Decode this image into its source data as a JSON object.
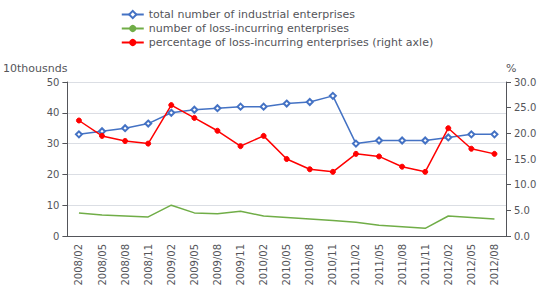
{
  "chart_data": {
    "type": "line",
    "categories": [
      "2008/02",
      "2008/05",
      "2008/08",
      "2008/11",
      "2009/02",
      "2009/05",
      "2009/08",
      "2009/11",
      "2010/02",
      "2010/05",
      "2010/08",
      "2010/11",
      "2011/02",
      "2011/05",
      "2011/08",
      "2011/11",
      "2012/02",
      "2012/05",
      "2012/08"
    ],
    "y_label": "10thousnds",
    "y2_label": "%",
    "ylim": [
      0,
      50
    ],
    "yticks": [
      0,
      10,
      20,
      30,
      40,
      50
    ],
    "y2lim": [
      0.0,
      30.0
    ],
    "y2ticks": [
      {
        "value": 0,
        "label": "0.0"
      },
      {
        "value": 5,
        "label": "5.0"
      },
      {
        "value": 10,
        "label": "10.0"
      },
      {
        "value": 15,
        "label": "15.0"
      },
      {
        "value": 20,
        "label": "20.0"
      },
      {
        "value": 25,
        "label": "25.0"
      },
      {
        "value": 30,
        "label": "30.0"
      }
    ],
    "grid": true,
    "legend": "top",
    "series": [
      {
        "name": "total number of industrial enterprises",
        "color": "#4472C4",
        "marker": "diamond",
        "values": [
          33,
          34,
          35,
          36.5,
          40,
          41,
          41.5,
          42,
          42,
          43,
          43.5,
          45.5,
          30,
          31,
          31,
          31,
          32,
          33,
          33
        ]
      },
      {
        "name": "number of loss-incurring enterprises",
        "color": "#70AD47",
        "marker": "none",
        "values": [
          7.5,
          6.8,
          6.5,
          6.2,
          10,
          7.5,
          7.2,
          8,
          6.5,
          6,
          5.5,
          5,
          4.5,
          3.5,
          3,
          2.5,
          6.5,
          6,
          5.5
        ]
      },
      {
        "name": "percentage of loss-incurring enterprises (right axle)",
        "color": "#FF0000",
        "marker": "circle",
        "axis": "y2",
        "values": [
          22.5,
          19.5,
          18.5,
          18,
          25.5,
          23,
          20.5,
          17.5,
          19.5,
          15,
          13,
          12.5,
          16,
          15.5,
          13.5,
          12.5,
          21,
          17,
          16
        ]
      }
    ]
  }
}
